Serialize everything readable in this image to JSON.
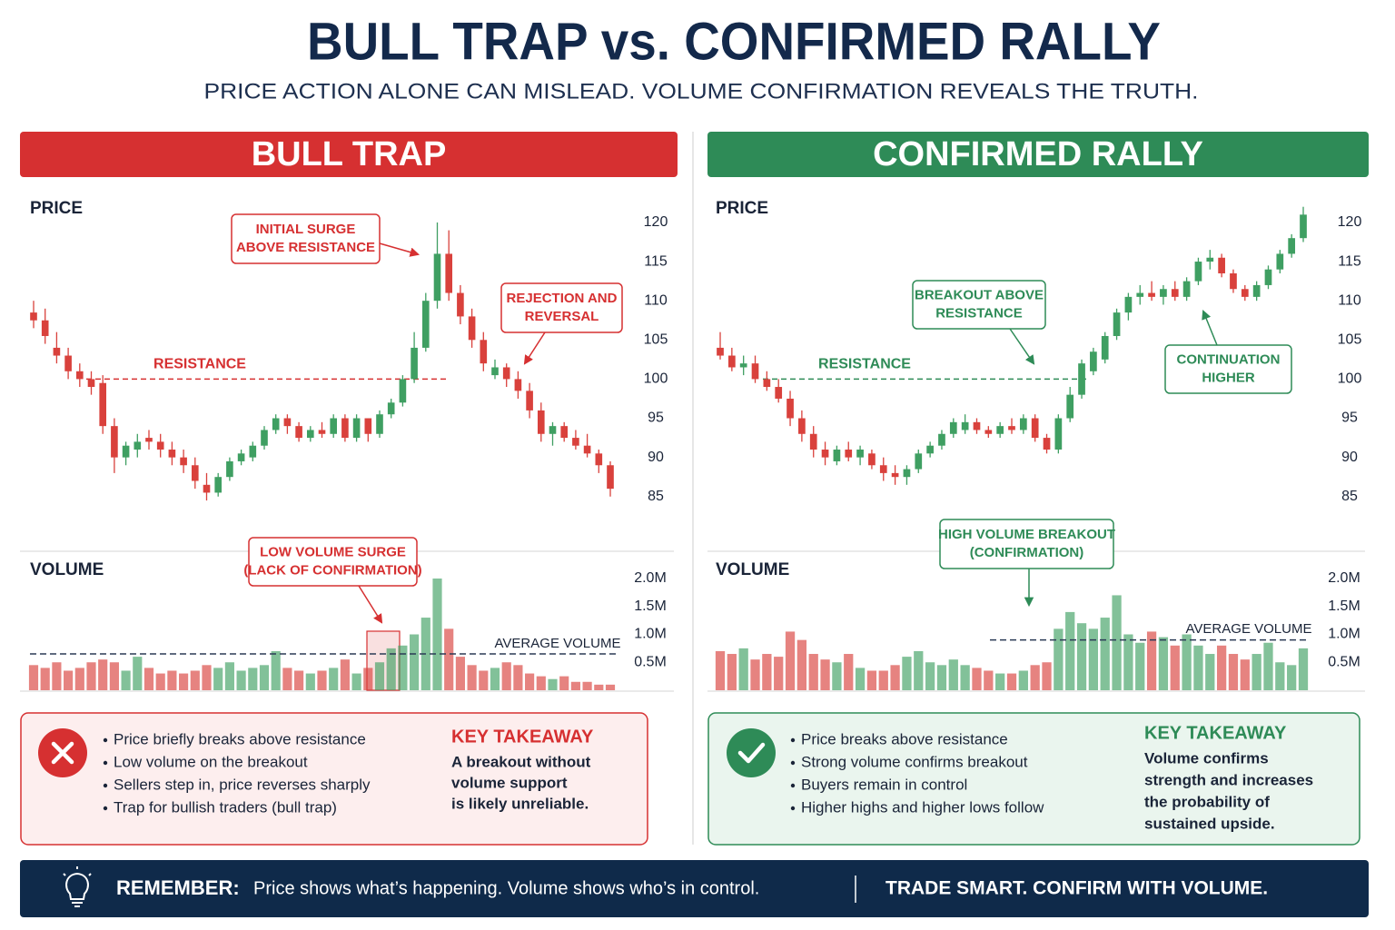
{
  "title": "BULL TRAP vs. CONFIRMED RALLY",
  "subtitle": "PRICE ACTION ALONE CAN MISLEAD. VOLUME CONFIRMATION REVEALS THE TRUTH.",
  "panels": [
    {
      "header": "BULL TRAP",
      "color": "#d63031",
      "bullets": [
        "Price briefly breaks above resistance",
        "Low volume on the breakout",
        "Sellers step in, price reverses sharply",
        "Trap for bullish traders (bull trap)"
      ],
      "takeaway_title": "KEY TAKEAWAY",
      "takeaway_text": [
        "A breakout without",
        "volume support",
        "is likely unreliable."
      ]
    },
    {
      "header": "CONFIRMED RALLY",
      "color": "#2e8b57",
      "bullets": [
        "Price breaks above resistance",
        "Strong volume confirms breakout",
        "Buyers remain in control",
        "Higher highs and higher lows follow"
      ],
      "takeaway_title": "KEY TAKEAWAY",
      "takeaway_text": [
        "Volume confirms",
        "strength and increases",
        "the probability of",
        "sustained upside."
      ]
    }
  ],
  "chart_data": [
    {
      "type": "candlestick",
      "title": "PRICE",
      "open": [
        108.5,
        107.5,
        104,
        103,
        101,
        100,
        99.5,
        94,
        90,
        91,
        92.5,
        92,
        91,
        90,
        89,
        86.5,
        85.5,
        87.5,
        89.5,
        90,
        91.5,
        93.5,
        95,
        94,
        92.5,
        93.5,
        93,
        95,
        92.5,
        95,
        93,
        95.5,
        97,
        100,
        104,
        110,
        116,
        111,
        108,
        105,
        100.5,
        101.5,
        100,
        98.5,
        96,
        93,
        94,
        92.5,
        91.5,
        90.5,
        89
      ],
      "high": [
        110,
        109,
        106,
        104,
        102,
        101,
        100.5,
        95,
        92,
        93,
        93.5,
        93,
        92,
        91,
        90,
        88,
        88,
        90,
        91,
        92,
        94,
        95.5,
        95.5,
        94.5,
        94,
        94.5,
        95.5,
        95.5,
        95.5,
        95,
        96,
        97.5,
        100.5,
        106,
        111,
        120,
        119,
        112,
        109,
        106,
        102.5,
        102,
        101,
        99.5,
        97,
        94.5,
        94.5,
        93.5,
        93,
        91,
        89.5
      ],
      "low": [
        106.5,
        104.5,
        102,
        100,
        99,
        98,
        93,
        88,
        89,
        90,
        91,
        90,
        89,
        88,
        86,
        84.5,
        85,
        87,
        89,
        89.5,
        91,
        93,
        93,
        92,
        92,
        92.5,
        92.5,
        92,
        92,
        92,
        92.5,
        95,
        96.5,
        99.5,
        103.5,
        109,
        110,
        107,
        104,
        101,
        100,
        99,
        97.5,
        95,
        92,
        91.5,
        92,
        91,
        90,
        88,
        85
      ],
      "close": [
        107.5,
        105.5,
        103,
        101,
        100,
        99,
        94,
        90,
        91.5,
        92,
        92,
        91,
        90,
        89,
        87,
        85.5,
        87.5,
        89.5,
        90.5,
        91.5,
        93.5,
        95,
        94,
        92.5,
        93.5,
        93,
        95,
        92.5,
        95,
        93,
        95.5,
        97,
        100,
        104,
        110,
        116,
        111,
        108,
        105,
        102,
        101.5,
        100,
        98.5,
        96,
        93,
        94,
        92.5,
        91.5,
        90.5,
        89,
        86
      ],
      "ylim": [
        83,
        122
      ],
      "yticks": [
        85,
        90,
        95,
        100,
        105,
        110,
        115,
        120
      ],
      "colors": {
        "up": "#3f9f62",
        "down": "#d9413c"
      },
      "reference_line": {
        "value": 100,
        "label": "RESISTANCE"
      },
      "annotations": [
        {
          "text": [
            "INITIAL SURGE",
            "ABOVE RESISTANCE"
          ]
        },
        {
          "text": [
            "REJECTION AND",
            "REVERSAL"
          ]
        }
      ],
      "volume": {
        "title": "VOLUME",
        "values": [
          450000,
          400000,
          500000,
          350000,
          400000,
          500000,
          550000,
          500000,
          350000,
          600000,
          400000,
          300000,
          350000,
          300000,
          350000,
          450000,
          400000,
          500000,
          350000,
          400000,
          450000,
          700000,
          400000,
          350000,
          300000,
          350000,
          400000,
          550000,
          300000,
          400000,
          500000,
          750000,
          800000,
          1000000,
          1300000,
          2000000,
          1100000,
          600000,
          450000,
          350000,
          400000,
          500000,
          450000,
          300000,
          250000,
          200000,
          250000,
          150000,
          150000,
          100000,
          100000
        ],
        "ylim": [
          0,
          2200000
        ],
        "yticks": [
          {
            "value": 500000,
            "label": "0.5M"
          },
          {
            "value": 1000000,
            "label": "1.0M"
          },
          {
            "value": 1500000,
            "label": "1.5M"
          },
          {
            "value": 2000000,
            "label": "2.0M"
          }
        ],
        "average": {
          "value": 650000,
          "label": "AVERAGE VOLUME"
        },
        "annotation": {
          "text": [
            "LOW VOLUME SURGE",
            "(LACK OF CONFIRMATION)"
          ]
        }
      }
    },
    {
      "type": "candlestick",
      "title": "PRICE",
      "open": [
        104,
        103,
        101.5,
        102,
        100,
        99,
        97.5,
        95,
        93,
        91,
        89.5,
        91,
        90,
        90.5,
        89,
        88,
        87.5,
        88.5,
        90.5,
        91.5,
        93,
        93.5,
        94.5,
        93.5,
        93,
        94,
        93.5,
        95,
        92.5,
        91,
        95,
        98,
        101,
        102.5,
        105.5,
        108.5,
        110.5,
        111,
        110.5,
        111.5,
        110.5,
        112.5,
        115,
        115.5,
        113.5,
        111.5,
        110.5,
        112,
        114,
        116,
        118
      ],
      "high": [
        106,
        104,
        103,
        103,
        101,
        100,
        98.5,
        96,
        94,
        92,
        91.5,
        92,
        91.5,
        91,
        90,
        89,
        89,
        91,
        92,
        93.5,
        95,
        95.5,
        95,
        94,
        94.5,
        95,
        95.5,
        95.5,
        93,
        95.5,
        99,
        102.5,
        104,
        106,
        109,
        111,
        112,
        112.5,
        112,
        112.5,
        113,
        115.5,
        116.5,
        116,
        114,
        112,
        112.5,
        114.5,
        116.5,
        118.5,
        122
      ],
      "low": [
        102.5,
        101,
        100.5,
        99.5,
        98.5,
        97,
        94,
        92,
        90,
        89,
        89,
        89.5,
        89,
        88.5,
        87,
        86.5,
        86.5,
        88,
        90,
        91,
        92.5,
        93,
        93,
        92.5,
        92.5,
        93,
        93,
        92,
        90.5,
        90.5,
        94.5,
        97.5,
        100.5,
        102,
        105,
        107.5,
        109.5,
        110,
        109.5,
        110,
        110,
        112,
        114,
        113,
        111,
        110,
        110,
        111.5,
        113.5,
        115.5,
        117.5
      ],
      "close": [
        103,
        101.5,
        102,
        100,
        99,
        97.5,
        95,
        93,
        91,
        90,
        91,
        90,
        91,
        89,
        88,
        87.5,
        88.5,
        90.5,
        91.5,
        93,
        94.5,
        94.5,
        93.5,
        93,
        94,
        93.5,
        95,
        92.5,
        91,
        95,
        98,
        102,
        103.5,
        105.5,
        108.5,
        110.5,
        111,
        110.5,
        111.5,
        110.5,
        112.5,
        115,
        115.5,
        113.5,
        111.5,
        110.5,
        112,
        114,
        116,
        118,
        121
      ],
      "ylim": [
        83,
        122
      ],
      "yticks": [
        85,
        90,
        95,
        100,
        105,
        110,
        115,
        120
      ],
      "colors": {
        "up": "#3f9f62",
        "down": "#d9413c"
      },
      "reference_line": {
        "value": 100,
        "label": "RESISTANCE"
      },
      "annotations": [
        {
          "text": [
            "BREAKOUT ABOVE",
            "RESISTANCE"
          ]
        },
        {
          "text": [
            "CONTINUATION",
            "HIGHER"
          ]
        }
      ],
      "volume": {
        "title": "VOLUME",
        "values": [
          700000,
          650000,
          750000,
          550000,
          650000,
          600000,
          1050000,
          900000,
          650000,
          550000,
          500000,
          650000,
          400000,
          350000,
          350000,
          450000,
          600000,
          700000,
          500000,
          450000,
          550000,
          450000,
          400000,
          350000,
          300000,
          300000,
          350000,
          450000,
          500000,
          1100000,
          1400000,
          1200000,
          1100000,
          1300000,
          1700000,
          1000000,
          850000,
          1050000,
          950000,
          800000,
          1000000,
          800000,
          650000,
          800000,
          650000,
          550000,
          650000,
          850000,
          500000,
          450000,
          750000
        ],
        "ylim": [
          0,
          2200000
        ],
        "yticks": [
          {
            "value": 500000,
            "label": "0.5M"
          },
          {
            "value": 1000000,
            "label": "1.0M"
          },
          {
            "value": 1500000,
            "label": "1.5M"
          },
          {
            "value": 2000000,
            "label": "2.0M"
          }
        ],
        "average": {
          "value": 900000,
          "label": "AVERAGE VOLUME"
        },
        "annotation": {
          "text": [
            "HIGH VOLUME BREAKOUT",
            "(CONFIRMATION)"
          ]
        }
      }
    }
  ],
  "footer": {
    "label": "REMEMBER:",
    "text": "Price shows what’s happening. Volume shows who’s in control.",
    "slogan": "TRADE SMART. CONFIRM WITH VOLUME."
  }
}
